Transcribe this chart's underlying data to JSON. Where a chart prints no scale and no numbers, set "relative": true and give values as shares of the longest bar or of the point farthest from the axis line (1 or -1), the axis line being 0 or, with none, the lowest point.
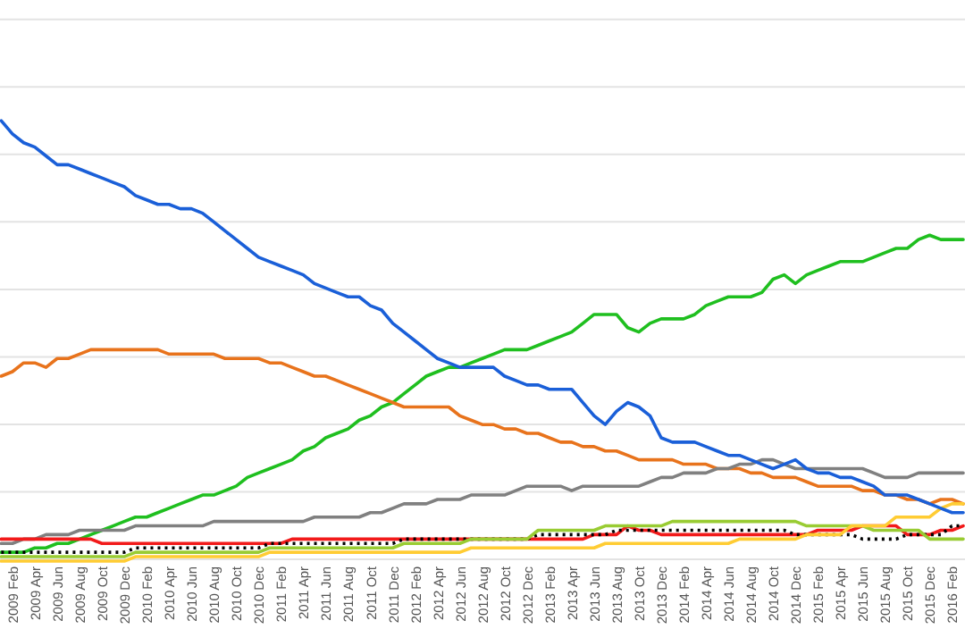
{
  "chart_data": {
    "type": "line",
    "relative": true,
    "grid": true,
    "marker": "none",
    "categories": [
      null,
      "2009 Feb",
      null,
      "2009 Apr",
      null,
      "2009 Jun",
      null,
      "2009 Aug",
      null,
      "2009 Oct",
      null,
      "2009 Dec",
      null,
      "2010 Feb",
      null,
      "2010 Apr",
      null,
      "2010 Jun",
      null,
      "2010 Aug",
      null,
      "2010 Oct",
      null,
      "2010 Dec",
      null,
      "2011 Feb",
      null,
      "2011 Apr",
      null,
      "2011 Jun",
      null,
      "2011 Aug",
      null,
      "2011 Oct",
      null,
      "2011 Dec",
      null,
      "2012 Feb",
      null,
      "2012 Apr",
      null,
      "2012 Jun",
      null,
      "2012 Aug",
      null,
      "2012 Oct",
      null,
      "2012 Dec",
      null,
      "2013 Feb",
      null,
      "2013 Apr",
      null,
      "2013 Jun",
      null,
      "2013 Aug",
      null,
      "2013 Oct",
      null,
      "2013 Dec",
      null,
      "2014 Feb",
      null,
      "2014 Apr",
      null,
      "2014 Jun",
      null,
      "2014 Aug",
      null,
      "2014 Oct",
      null,
      "2014 Dec",
      null,
      "2015 Feb",
      null,
      "2015 Apr",
      null,
      "2015 Jun",
      null,
      "2015 Aug",
      null,
      "2015 Oct",
      null,
      "2015 Dec",
      null,
      "2016 Feb",
      null
    ],
    "series": [
      {
        "color": "#1a5fd8",
        "values": [
          1.0,
          0.97,
          0.95,
          0.94,
          0.92,
          0.9,
          0.9,
          0.89,
          0.88,
          0.87,
          0.86,
          0.85,
          0.83,
          0.82,
          0.81,
          0.81,
          0.8,
          0.8,
          0.79,
          0.77,
          0.75,
          0.73,
          0.71,
          0.69,
          0.68,
          0.67,
          0.66,
          0.65,
          0.63,
          0.62,
          0.61,
          0.6,
          0.6,
          0.58,
          0.57,
          0.54,
          0.52,
          0.5,
          0.48,
          0.46,
          0.45,
          0.44,
          0.44,
          0.44,
          0.44,
          0.42,
          0.41,
          0.4,
          0.4,
          0.39,
          0.39,
          0.39,
          0.36,
          0.33,
          0.31,
          0.34,
          0.36,
          0.35,
          0.33,
          0.28,
          0.27,
          0.27,
          0.27,
          0.26,
          0.25,
          0.24,
          0.24,
          0.23,
          0.22,
          0.21,
          0.22,
          0.23,
          0.21,
          0.2,
          0.2,
          0.19,
          0.19,
          0.18,
          0.17,
          0.15,
          0.15,
          0.15,
          0.14,
          0.13,
          0.12,
          0.11,
          0.11
        ]
      },
      {
        "color": "#1fbf1f",
        "values": [
          0.02,
          0.02,
          0.02,
          0.03,
          0.03,
          0.04,
          0.04,
          0.05,
          0.06,
          0.07,
          0.08,
          0.09,
          0.1,
          0.1,
          0.11,
          0.12,
          0.13,
          0.14,
          0.15,
          0.15,
          0.16,
          0.17,
          0.19,
          0.2,
          0.21,
          0.22,
          0.23,
          0.25,
          0.26,
          0.28,
          0.29,
          0.3,
          0.32,
          0.33,
          0.35,
          0.36,
          0.38,
          0.4,
          0.42,
          0.43,
          0.44,
          0.44,
          0.45,
          0.46,
          0.47,
          0.48,
          0.48,
          0.48,
          0.49,
          0.5,
          0.51,
          0.52,
          0.54,
          0.56,
          0.56,
          0.56,
          0.53,
          0.52,
          0.54,
          0.55,
          0.55,
          0.55,
          0.56,
          0.58,
          0.59,
          0.6,
          0.6,
          0.6,
          0.61,
          0.64,
          0.65,
          0.63,
          0.65,
          0.66,
          0.67,
          0.68,
          0.68,
          0.68,
          0.69,
          0.7,
          0.71,
          0.71,
          0.73,
          0.74,
          0.73,
          0.73,
          0.73
        ]
      },
      {
        "color": "#e8731c",
        "values": [
          0.42,
          0.43,
          0.45,
          0.45,
          0.44,
          0.46,
          0.46,
          0.47,
          0.48,
          0.48,
          0.48,
          0.48,
          0.48,
          0.48,
          0.48,
          0.47,
          0.47,
          0.47,
          0.47,
          0.47,
          0.46,
          0.46,
          0.46,
          0.46,
          0.45,
          0.45,
          0.44,
          0.43,
          0.42,
          0.42,
          0.41,
          0.4,
          0.39,
          0.38,
          0.37,
          0.36,
          0.35,
          0.35,
          0.35,
          0.35,
          0.35,
          0.33,
          0.32,
          0.31,
          0.31,
          0.3,
          0.3,
          0.29,
          0.29,
          0.28,
          0.27,
          0.27,
          0.26,
          0.26,
          0.25,
          0.25,
          0.24,
          0.23,
          0.23,
          0.23,
          0.23,
          0.22,
          0.22,
          0.22,
          0.21,
          0.21,
          0.21,
          0.2,
          0.2,
          0.19,
          0.19,
          0.19,
          0.18,
          0.17,
          0.17,
          0.17,
          0.17,
          0.16,
          0.16,
          0.15,
          0.15,
          0.14,
          0.14,
          0.13,
          0.14,
          0.14,
          0.13
        ]
      },
      {
        "color": "#808080",
        "values": [
          0.04,
          0.04,
          0.05,
          0.05,
          0.06,
          0.06,
          0.06,
          0.07,
          0.07,
          0.07,
          0.07,
          0.07,
          0.08,
          0.08,
          0.08,
          0.08,
          0.08,
          0.08,
          0.08,
          0.09,
          0.09,
          0.09,
          0.09,
          0.09,
          0.09,
          0.09,
          0.09,
          0.09,
          0.1,
          0.1,
          0.1,
          0.1,
          0.1,
          0.11,
          0.11,
          0.12,
          0.13,
          0.13,
          0.13,
          0.14,
          0.14,
          0.14,
          0.15,
          0.15,
          0.15,
          0.15,
          0.16,
          0.17,
          0.17,
          0.17,
          0.17,
          0.16,
          0.17,
          0.17,
          0.17,
          0.17,
          0.17,
          0.17,
          0.18,
          0.19,
          0.19,
          0.2,
          0.2,
          0.2,
          0.21,
          0.21,
          0.22,
          0.22,
          0.23,
          0.23,
          0.22,
          0.21,
          0.21,
          0.21,
          0.21,
          0.21,
          0.21,
          0.21,
          0.2,
          0.19,
          0.19,
          0.19,
          0.2,
          0.2,
          0.2,
          0.2,
          0.2
        ]
      },
      {
        "color": "#f21a1a",
        "values": [
          0.05,
          0.05,
          0.05,
          0.05,
          0.05,
          0.05,
          0.05,
          0.05,
          0.05,
          0.04,
          0.04,
          0.04,
          0.04,
          0.04,
          0.04,
          0.04,
          0.04,
          0.04,
          0.04,
          0.04,
          0.04,
          0.04,
          0.04,
          0.04,
          0.04,
          0.04,
          0.05,
          0.05,
          0.05,
          0.05,
          0.05,
          0.05,
          0.05,
          0.05,
          0.05,
          0.05,
          0.05,
          0.05,
          0.05,
          0.05,
          0.05,
          0.05,
          0.05,
          0.05,
          0.05,
          0.05,
          0.05,
          0.05,
          0.05,
          0.05,
          0.05,
          0.05,
          0.05,
          0.06,
          0.06,
          0.06,
          0.08,
          0.07,
          0.07,
          0.06,
          0.06,
          0.06,
          0.06,
          0.06,
          0.06,
          0.06,
          0.06,
          0.06,
          0.06,
          0.06,
          0.06,
          0.06,
          0.06,
          0.07,
          0.07,
          0.07,
          0.07,
          0.08,
          0.08,
          0.08,
          0.08,
          0.06,
          0.06,
          0.06,
          0.07,
          0.07,
          0.08
        ]
      },
      {
        "color": "#000000",
        "line_style": "dotted",
        "values": [
          0.02,
          0.02,
          0.02,
          0.02,
          0.02,
          0.02,
          0.02,
          0.02,
          0.02,
          0.02,
          0.02,
          0.02,
          0.03,
          0.03,
          0.03,
          0.03,
          0.03,
          0.03,
          0.03,
          0.03,
          0.03,
          0.03,
          0.03,
          0.03,
          0.04,
          0.04,
          0.04,
          0.04,
          0.04,
          0.04,
          0.04,
          0.04,
          0.04,
          0.04,
          0.04,
          0.04,
          0.05,
          0.05,
          0.05,
          0.05,
          0.05,
          0.05,
          0.05,
          0.05,
          0.05,
          0.05,
          0.05,
          0.05,
          0.06,
          0.06,
          0.06,
          0.06,
          0.06,
          0.06,
          0.06,
          0.07,
          0.07,
          0.07,
          0.07,
          0.07,
          0.07,
          0.07,
          0.07,
          0.07,
          0.07,
          0.07,
          0.07,
          0.07,
          0.07,
          0.07,
          0.07,
          0.06,
          0.06,
          0.06,
          0.06,
          0.06,
          0.06,
          0.05,
          0.05,
          0.05,
          0.05,
          0.06,
          0.06,
          0.06,
          0.06,
          0.08,
          0.08
        ]
      },
      {
        "color": "#99cc33",
        "values": [
          0.01,
          0.01,
          0.01,
          0.01,
          0.01,
          0.01,
          0.01,
          0.01,
          0.01,
          0.01,
          0.01,
          0.01,
          0.02,
          0.02,
          0.02,
          0.02,
          0.02,
          0.02,
          0.02,
          0.02,
          0.02,
          0.02,
          0.02,
          0.02,
          0.03,
          0.03,
          0.03,
          0.03,
          0.03,
          0.03,
          0.03,
          0.03,
          0.03,
          0.03,
          0.03,
          0.03,
          0.04,
          0.04,
          0.04,
          0.04,
          0.04,
          0.04,
          0.05,
          0.05,
          0.05,
          0.05,
          0.05,
          0.05,
          0.07,
          0.07,
          0.07,
          0.07,
          0.07,
          0.07,
          0.08,
          0.08,
          0.08,
          0.08,
          0.08,
          0.08,
          0.09,
          0.09,
          0.09,
          0.09,
          0.09,
          0.09,
          0.09,
          0.09,
          0.09,
          0.09,
          0.09,
          0.09,
          0.08,
          0.08,
          0.08,
          0.08,
          0.08,
          0.08,
          0.07,
          0.07,
          0.07,
          0.07,
          0.07,
          0.05,
          0.05,
          0.05,
          0.05
        ]
      },
      {
        "color": "#ffcc33",
        "values": [
          0.0,
          0.0,
          0.0,
          0.0,
          0.0,
          0.0,
          0.0,
          0.0,
          0.0,
          0.0,
          0.0,
          0.0,
          0.01,
          0.01,
          0.01,
          0.01,
          0.01,
          0.01,
          0.01,
          0.01,
          0.01,
          0.01,
          0.01,
          0.01,
          0.02,
          0.02,
          0.02,
          0.02,
          0.02,
          0.02,
          0.02,
          0.02,
          0.02,
          0.02,
          0.02,
          0.02,
          0.02,
          0.02,
          0.02,
          0.02,
          0.02,
          0.02,
          0.03,
          0.03,
          0.03,
          0.03,
          0.03,
          0.03,
          0.03,
          0.03,
          0.03,
          0.03,
          0.03,
          0.03,
          0.04,
          0.04,
          0.04,
          0.04,
          0.04,
          0.04,
          0.04,
          0.04,
          0.04,
          0.04,
          0.04,
          0.04,
          0.05,
          0.05,
          0.05,
          0.05,
          0.05,
          0.05,
          0.06,
          0.06,
          0.06,
          0.06,
          0.08,
          0.08,
          0.08,
          0.08,
          0.1,
          0.1,
          0.1,
          0.1,
          0.12,
          0.13,
          0.13
        ]
      }
    ]
  }
}
